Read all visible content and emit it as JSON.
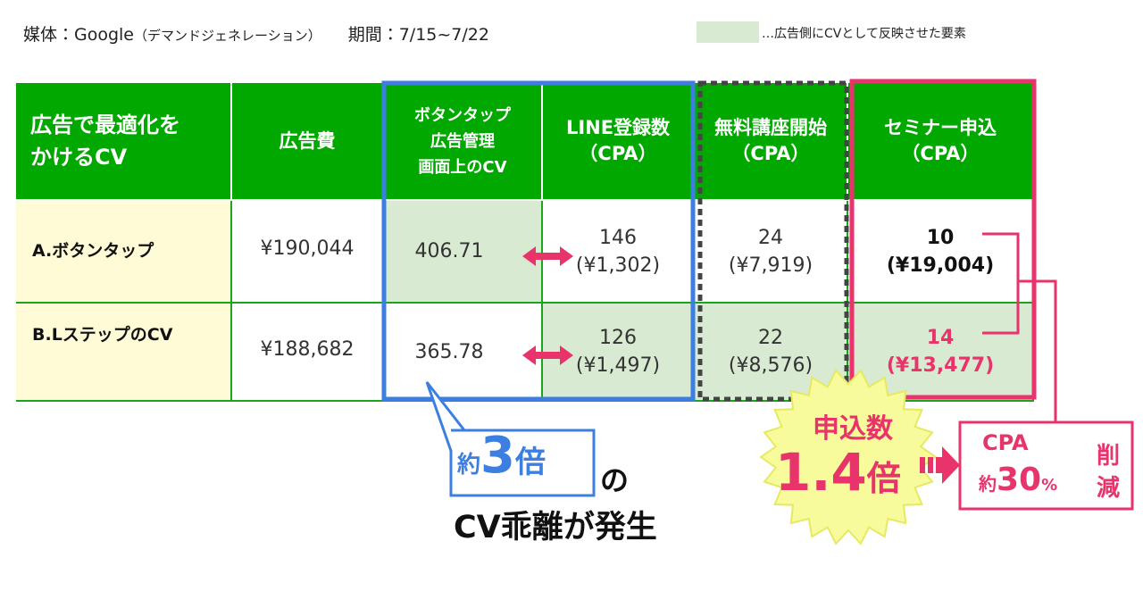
{
  "header": {
    "media": "媒体：Google",
    "media_note": "（デマンドジェネレーション）",
    "period": "期間：7/15~7/22"
  },
  "legend": {
    "label": "…広告側にCVとして反映させた要素"
  },
  "table": {
    "columns": [
      [
        "広告で最適化を",
        "かけるCV"
      ],
      [
        "広告費"
      ],
      [
        "ボタンタップ",
        "広告管理",
        "画面上のCV"
      ],
      [
        "LINE登録数",
        "（CPA）"
      ],
      [
        "無料講座開始",
        "（CPA）"
      ],
      [
        "セミナー申込",
        "（CPA）"
      ]
    ],
    "rows": [
      [
        "A.ボタンタップ",
        "¥190,044",
        "406.71",
        [
          "146",
          "(¥1,302)"
        ],
        [
          "24",
          "(¥7,919)"
        ],
        [
          "10",
          "(¥19,004)"
        ]
      ],
      [
        "B.LステップのCV",
        "¥188,682",
        "365.78",
        [
          "126",
          "(¥1,497)"
        ],
        [
          "22",
          "(¥8,576)"
        ],
        [
          "14",
          "(¥13,477)"
        ]
      ]
    ]
  },
  "callout": {
    "prefix": "約",
    "number": "3",
    "suffix": "倍",
    "particle": "の",
    "text": "CV乖離が発生"
  },
  "star": {
    "label": "申込数",
    "number": "1.4",
    "suffix": "倍"
  },
  "cpa_box": {
    "label": "CPA",
    "prefix": "約",
    "number": "30",
    "unit": "%",
    "suffix1": "削",
    "suffix2": "減"
  }
}
